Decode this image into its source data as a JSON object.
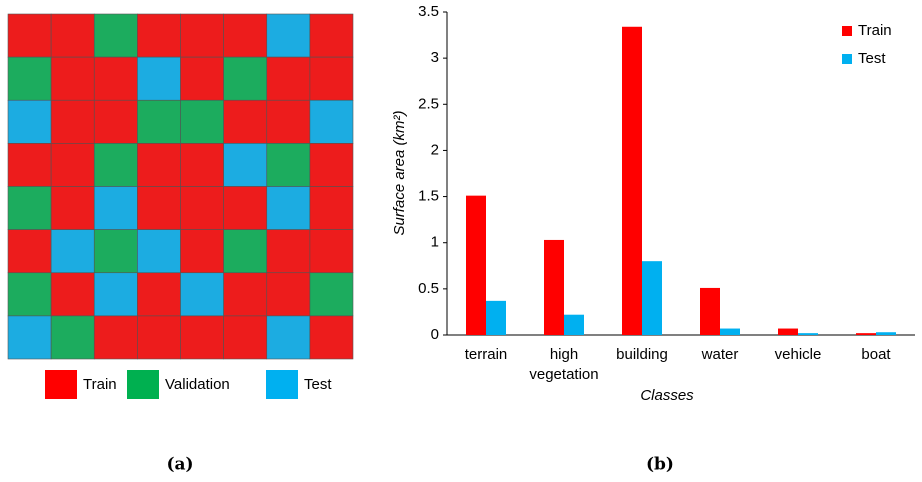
{
  "panel_a": {
    "legend": [
      {
        "name": "Train",
        "color": "#ff0000"
      },
      {
        "name": "Validation",
        "color": "#00b050"
      },
      {
        "name": "Test",
        "color": "#00b0f0"
      }
    ],
    "caption": "(a)"
  },
  "chart_data": {
    "type": "bar",
    "caption": "(b)",
    "y_label": "Surface area (km²)",
    "x_label": "Classes",
    "categories": [
      "terrain",
      "high vegetation",
      "building",
      "water",
      "vehicle",
      "boat"
    ],
    "series": [
      {
        "name": "Train",
        "color": "#ff0000",
        "values": [
          1.51,
          1.03,
          3.34,
          0.51,
          0.07,
          0.02
        ]
      },
      {
        "name": "Test",
        "color": "#00b0f0",
        "values": [
          0.37,
          0.22,
          0.8,
          0.07,
          0.02,
          0.03
        ]
      }
    ],
    "ylim": [
      0,
      3.5
    ],
    "yticks": [
      0,
      0.5,
      1,
      1.5,
      2,
      2.5,
      3,
      3.5
    ],
    "grid": false,
    "legend": "top-right"
  }
}
